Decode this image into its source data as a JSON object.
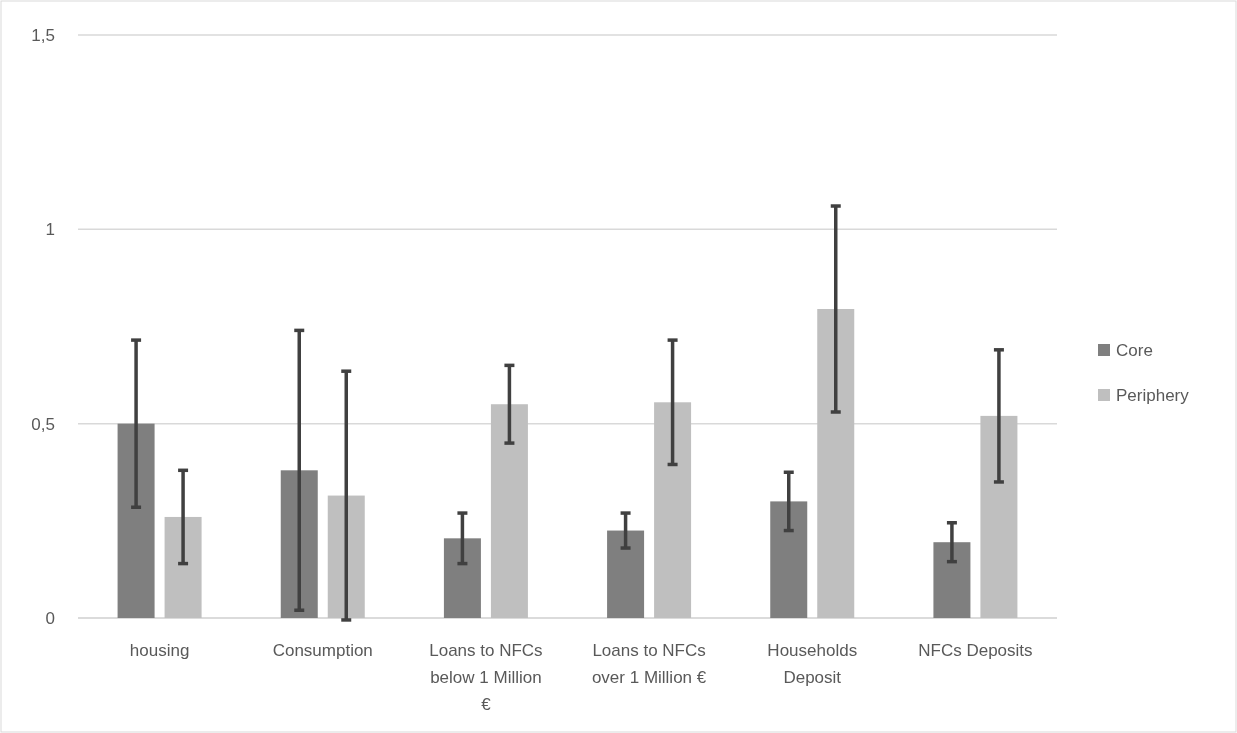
{
  "chart_data": {
    "type": "bar",
    "categories": [
      "housing",
      "Consumption",
      "Loans to NFCs below 1 Million €",
      "Loans to NFCs over 1 Million €",
      "Households Deposit",
      "NFCs Deposits"
    ],
    "series": [
      {
        "name": "Core",
        "color": "#7f7f7f",
        "values": [
          0.5,
          0.38,
          0.205,
          0.225,
          0.3,
          0.195
        ],
        "errors": [
          0.215,
          0.36,
          0.065,
          0.045,
          0.075,
          0.05
        ]
      },
      {
        "name": "Periphery",
        "color": "#bfbfbf",
        "values": [
          0.26,
          0.315,
          0.55,
          0.555,
          0.795,
          0.52
        ],
        "errors": [
          0.12,
          0.32,
          0.1,
          0.16,
          0.265,
          0.17
        ]
      }
    ],
    "ylim": [
      0,
      1.5
    ],
    "yticks": [
      {
        "value": 0,
        "label": "0"
      },
      {
        "value": 0.5,
        "label": "0,5"
      },
      {
        "value": 1,
        "label": "1"
      },
      {
        "value": 1.5,
        "label": "1,5"
      }
    ],
    "grid": "y",
    "legend": "right"
  }
}
